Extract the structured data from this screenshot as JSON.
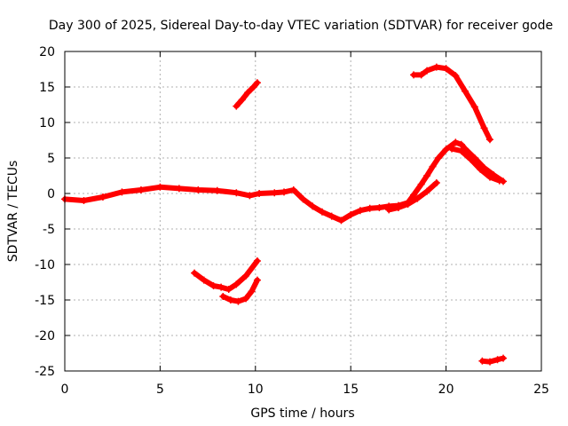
{
  "chart_data": {
    "type": "scatter",
    "title": "Day 300 of 2025, Sidereal Day-to-day VTEC variation (SDTVAR) for receiver gode",
    "xlabel": "GPS time / hours",
    "ylabel": "SDTVAR / TECUs",
    "xlim": [
      0,
      25
    ],
    "ylim": [
      -25,
      20
    ],
    "xticks": [
      0,
      5,
      10,
      15,
      20,
      25
    ],
    "yticks": [
      -25,
      -20,
      -15,
      -10,
      -5,
      0,
      5,
      10,
      15,
      20
    ],
    "grid": true,
    "series_color": "#ff0000",
    "series": [
      {
        "name": "main-band",
        "points": [
          [
            0,
            -0.8
          ],
          [
            1,
            -1.0
          ],
          [
            2,
            -0.5
          ],
          [
            3,
            0.2
          ],
          [
            4,
            0.5
          ],
          [
            5,
            0.9
          ],
          [
            6,
            0.7
          ],
          [
            7,
            0.5
          ],
          [
            8,
            0.4
          ],
          [
            9,
            0.1
          ],
          [
            9.7,
            -0.3
          ],
          [
            10.2,
            0.0
          ],
          [
            11,
            0.1
          ],
          [
            11.5,
            0.2
          ],
          [
            12,
            0.5
          ],
          [
            12.5,
            -0.8
          ],
          [
            13,
            -1.8
          ],
          [
            13.5,
            -2.6
          ],
          [
            14,
            -3.2
          ],
          [
            14.5,
            -3.8
          ],
          [
            15,
            -3.0
          ],
          [
            15.5,
            -2.4
          ],
          [
            16,
            -2.1
          ],
          [
            16.5,
            -2.0
          ],
          [
            17,
            -1.8
          ],
          [
            17.5,
            -1.7
          ],
          [
            18,
            -1.3
          ],
          [
            18.3,
            -0.2
          ],
          [
            18.7,
            1.3
          ],
          [
            19,
            2.5
          ],
          [
            19.3,
            3.8
          ],
          [
            19.6,
            5.0
          ],
          [
            20,
            6.2
          ],
          [
            20.5,
            7.2
          ],
          [
            20.8,
            6.9
          ],
          [
            21,
            6.3
          ],
          [
            21.5,
            5.0
          ],
          [
            22,
            3.6
          ],
          [
            22.5,
            2.6
          ],
          [
            23,
            1.7
          ]
        ]
      },
      {
        "name": "lower-parallel",
        "points": [
          [
            17,
            -2.3
          ],
          [
            17.5,
            -2.0
          ],
          [
            18,
            -1.5
          ],
          [
            18.5,
            -0.7
          ],
          [
            19,
            0.3
          ],
          [
            19.5,
            1.5
          ]
        ]
      },
      {
        "name": "upper-parallel",
        "points": [
          [
            20.3,
            6.3
          ],
          [
            20.8,
            6.0
          ],
          [
            21.3,
            4.8
          ],
          [
            21.8,
            3.4
          ],
          [
            22.3,
            2.3
          ],
          [
            22.8,
            1.8
          ]
        ]
      },
      {
        "name": "arc-9-10",
        "points": [
          [
            9.0,
            12.3
          ],
          [
            9.3,
            13.2
          ],
          [
            9.6,
            14.2
          ],
          [
            9.9,
            15.0
          ],
          [
            10.1,
            15.6
          ]
        ]
      },
      {
        "name": "arc-18-22",
        "points": [
          [
            18.3,
            16.7
          ],
          [
            18.7,
            16.7
          ],
          [
            19.0,
            17.3
          ],
          [
            19.5,
            17.8
          ],
          [
            20.0,
            17.6
          ],
          [
            20.5,
            16.6
          ],
          [
            21.0,
            14.4
          ],
          [
            21.5,
            12.2
          ],
          [
            22.0,
            9.2
          ],
          [
            22.3,
            7.6
          ]
        ]
      },
      {
        "name": "arc-7-10",
        "points": [
          [
            6.8,
            -11.2
          ],
          [
            7.3,
            -12.2
          ],
          [
            7.8,
            -13.0
          ],
          [
            8.2,
            -13.2
          ],
          [
            8.6,
            -13.5
          ],
          [
            9.0,
            -12.8
          ],
          [
            9.5,
            -11.6
          ],
          [
            10.1,
            -9.5
          ]
        ]
      },
      {
        "name": "arc-8-10",
        "points": [
          [
            8.3,
            -14.5
          ],
          [
            8.7,
            -15.0
          ],
          [
            9.1,
            -15.2
          ],
          [
            9.5,
            -14.8
          ],
          [
            9.8,
            -13.8
          ],
          [
            10.1,
            -12.2
          ]
        ]
      },
      {
        "name": "arc-22-23",
        "points": [
          [
            21.9,
            -23.6
          ],
          [
            22.3,
            -23.7
          ],
          [
            22.7,
            -23.4
          ],
          [
            23.0,
            -23.2
          ]
        ]
      }
    ]
  }
}
